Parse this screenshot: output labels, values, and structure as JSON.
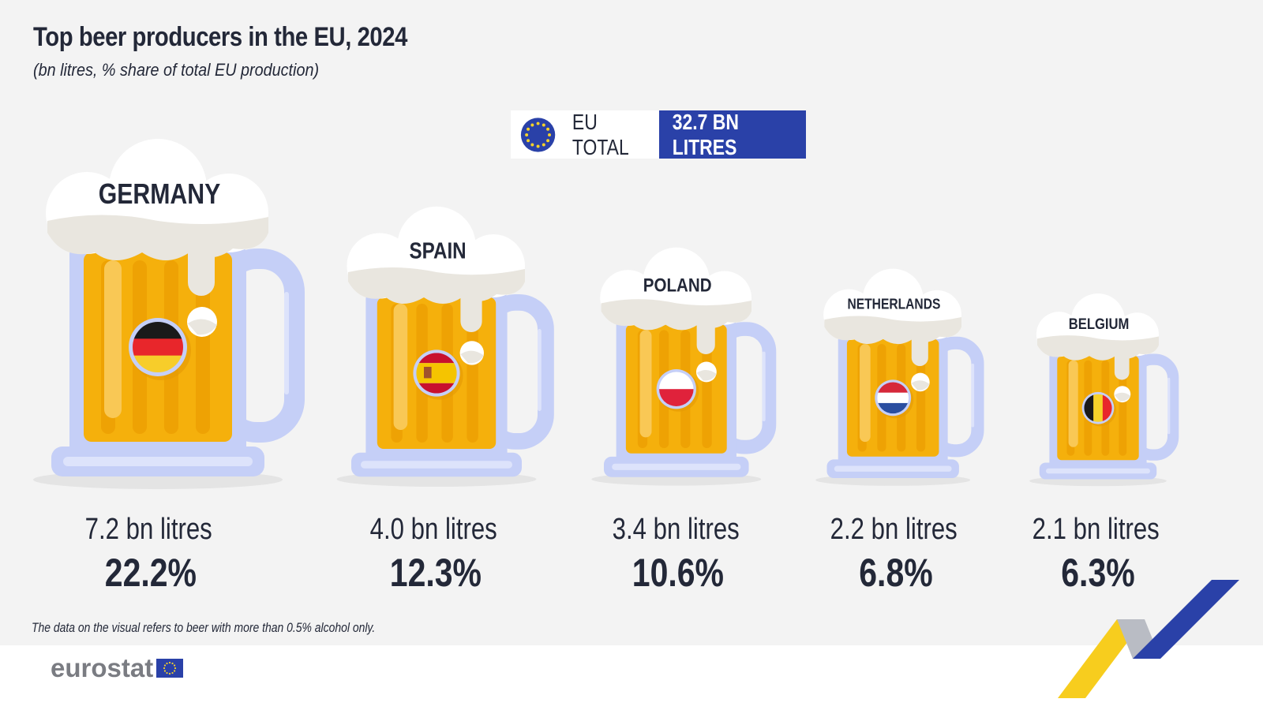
{
  "header": {
    "title": "Top beer producers in the EU, 2024",
    "subtitle": "(bn litres, % share of total EU production)"
  },
  "eu_total": {
    "label": "EU TOTAL",
    "value": "32.7 BN LITRES"
  },
  "chart_data": {
    "type": "bar",
    "title": "Top beer producers in the EU, 2024",
    "subtitle": "(bn litres, % share of total EU production)",
    "categories": [
      "GERMANY",
      "SPAIN",
      "POLAND",
      "NETHERLANDS",
      "BELGIUM"
    ],
    "values": [
      7.2,
      4.0,
      3.4,
      2.2,
      2.1
    ],
    "shares": [
      22.2,
      12.3,
      10.6,
      6.8,
      6.3
    ],
    "unit": "bn litres",
    "litres_labels": [
      "7.2 bn litres",
      "4.0 bn litres",
      "3.4 bn litres",
      "2.2 bn litres",
      "2.1 bn litres"
    ],
    "share_labels": [
      "22.2%",
      "12.3%",
      "10.6%",
      "6.8%",
      "6.3%"
    ],
    "eu_total": 32.7
  },
  "flags": {
    "GERMANY": {
      "type": "h",
      "colors": [
        "#1a1a1a",
        "#e8262b",
        "#f7cd2a"
      ]
    },
    "SPAIN": {
      "type": "es",
      "colors": [
        "#c8102e",
        "#f5c400",
        "#c8102e"
      ]
    },
    "POLAND": {
      "type": "h",
      "colors": [
        "#ffffff",
        "#e0223b"
      ]
    },
    "NETHERLANDS": {
      "type": "h",
      "colors": [
        "#d6283a",
        "#ffffff",
        "#2a4ea0"
      ]
    },
    "BELGIUM": {
      "type": "v",
      "colors": [
        "#1a1a1a",
        "#f7d22a",
        "#e8262b"
      ]
    }
  },
  "colors": {
    "beer": "#f5b00c",
    "beer_stripe": "#eea204",
    "glass": "#c5cff7",
    "foam": "#ffffff",
    "foam_shade": "#e9e6df",
    "eu_blue": "#2a41a8"
  },
  "footnote": "The data on the visual refers to beer with more than 0.5% alcohol only.",
  "logo": {
    "text": "eurostat"
  }
}
